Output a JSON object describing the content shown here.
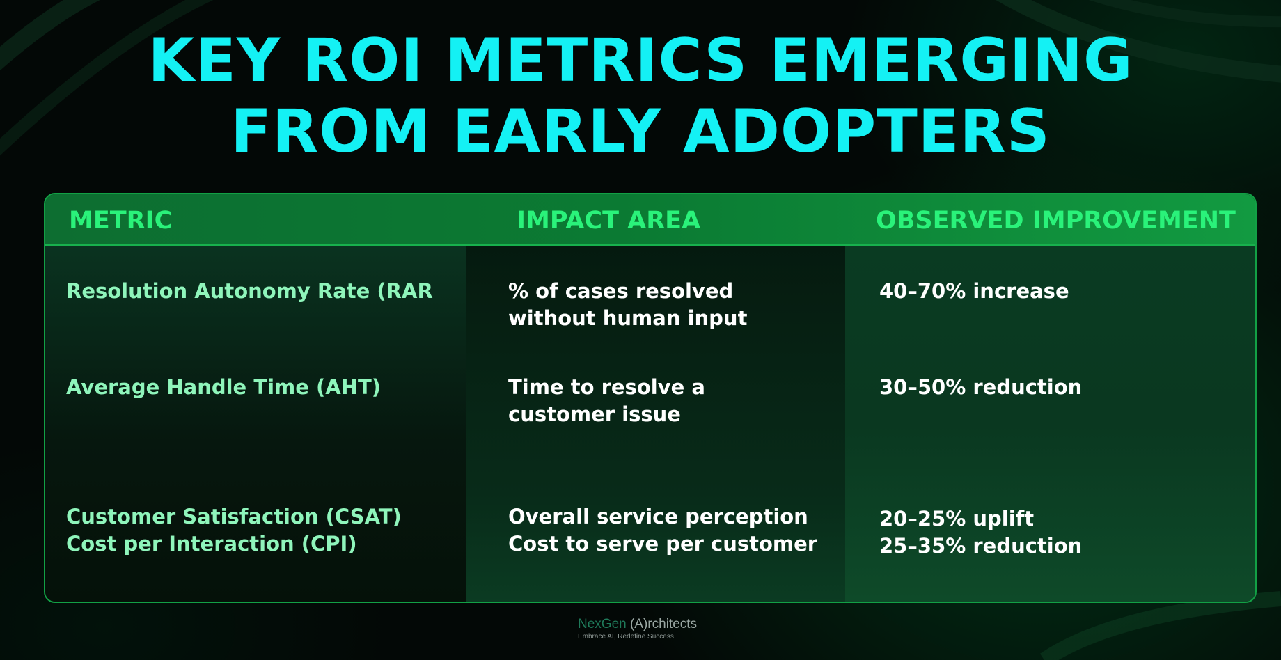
{
  "title": {
    "line1": "KEY ROI METRICS EMERGING",
    "line2": "FROM EARLY ADOPTERS"
  },
  "table": {
    "headers": [
      "METRIC",
      "IMPACT AREA",
      "OBSERVED IMPROVEMENT"
    ],
    "rows": [
      {
        "metric": [
          "Resolution Autonomy Rate (RAR"
        ],
        "impact": [
          "% of cases resolved",
          "without human input"
        ],
        "improvement": [
          "40–70% increase"
        ]
      },
      {
        "metric": [
          "Average Handle Time (AHT)"
        ],
        "impact": [
          "Time to resolve a",
          "customer issue"
        ],
        "improvement": [
          "30–50% reduction"
        ]
      },
      {
        "metric": [
          "Customer Satisfaction (CSAT)",
          "Cost per Interaction (CPI)"
        ],
        "impact": [
          "Overall service perception",
          "Cost to serve per customer"
        ],
        "improvement": [
          "20–25% uplift",
          "25–35% reduction"
        ]
      }
    ]
  },
  "footer": {
    "brand_part1": "NexGen",
    "brand_part2": "(A)rchitects",
    "tagline": "Embrace AI, Redefine Success"
  },
  "colors": {
    "title": "#14f1f4",
    "header_text": "#2af27a",
    "metric_text": "#8ff5bb",
    "body_text": "#ffffff",
    "border": "#12a045"
  }
}
